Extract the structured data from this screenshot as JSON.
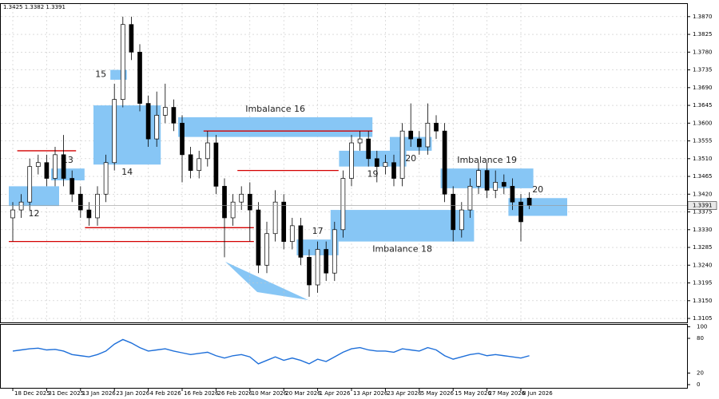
{
  "chart_data": [
    {
      "type": "candlestick",
      "ohlc_label": "1.3425 1.3382 1.3391",
      "last_price": 1.3391,
      "categories": [
        "18 Dec 2025",
        null,
        null,
        null,
        "31 Dec 2025",
        null,
        null,
        null,
        "13 Jan 2026",
        null,
        null,
        null,
        "23 Jan 2026",
        null,
        null,
        null,
        "4 Feb 2026",
        null,
        null,
        null,
        "16 Feb 2026",
        null,
        null,
        null,
        "26 Feb 2026",
        null,
        null,
        null,
        "10 Mar 2026",
        null,
        null,
        null,
        "20 Mar 2026",
        null,
        null,
        null,
        "1 Apr 2026",
        null,
        null,
        null,
        "13 Apr 2026",
        null,
        null,
        null,
        "23 Apr 2026",
        null,
        null,
        null,
        "5 May 2026",
        null,
        null,
        null,
        "15 May 2026",
        null,
        null,
        null,
        "27 May 2026",
        null,
        null,
        null,
        "8 Jun 2026",
        null
      ],
      "open": [
        1.336,
        1.338,
        1.34,
        1.349,
        1.35,
        1.346,
        1.352,
        1.346,
        1.342,
        1.338,
        1.336,
        1.342,
        1.35,
        1.366,
        1.385,
        1.378,
        1.365,
        1.356,
        1.362,
        1.364,
        1.36,
        1.352,
        1.348,
        1.351,
        1.355,
        1.344,
        1.336,
        1.34,
        1.342,
        1.338,
        1.324,
        1.332,
        1.34,
        1.33,
        1.334,
        1.326,
        1.319,
        1.328,
        1.322,
        1.333,
        1.346,
        1.355,
        1.356,
        1.351,
        1.349,
        1.35,
        1.346,
        1.358,
        1.356,
        1.354,
        1.36,
        1.358,
        1.342,
        1.333,
        1.338,
        1.344,
        1.348,
        1.343,
        1.345,
        1.344,
        1.34,
        1.341
      ],
      "high": [
        1.34,
        1.342,
        1.351,
        1.352,
        1.352,
        1.354,
        1.357,
        1.348,
        1.344,
        1.34,
        1.344,
        1.352,
        1.37,
        1.387,
        1.387,
        1.38,
        1.367,
        1.368,
        1.37,
        1.366,
        1.362,
        1.354,
        1.353,
        1.358,
        1.357,
        1.346,
        1.342,
        1.344,
        1.345,
        1.34,
        1.335,
        1.343,
        1.342,
        1.336,
        1.336,
        1.328,
        1.33,
        1.33,
        1.335,
        1.348,
        1.357,
        1.358,
        1.358,
        1.353,
        1.352,
        1.352,
        1.36,
        1.365,
        1.358,
        1.365,
        1.362,
        1.36,
        1.344,
        1.34,
        1.346,
        1.35,
        1.35,
        1.348,
        1.347,
        1.346,
        1.342,
        1.3425
      ],
      "low": [
        1.33,
        1.336,
        1.338,
        1.347,
        1.344,
        1.344,
        1.344,
        1.34,
        1.336,
        1.334,
        1.334,
        1.34,
        1.348,
        1.364,
        1.376,
        1.363,
        1.354,
        1.354,
        1.36,
        1.358,
        1.345,
        1.346,
        1.346,
        1.349,
        1.342,
        1.326,
        1.334,
        1.338,
        1.33,
        1.322,
        1.322,
        1.33,
        1.328,
        1.328,
        1.324,
        1.316,
        1.317,
        1.32,
        1.32,
        1.331,
        1.344,
        1.353,
        1.349,
        1.345,
        1.347,
        1.344,
        1.344,
        1.354,
        1.352,
        1.352,
        1.356,
        1.34,
        1.33,
        1.331,
        1.336,
        1.342,
        1.341,
        1.341,
        1.342,
        1.338,
        1.33,
        1.3382
      ],
      "close": [
        1.338,
        1.34,
        1.349,
        1.35,
        1.346,
        1.352,
        1.346,
        1.342,
        1.338,
        1.336,
        1.342,
        1.35,
        1.366,
        1.385,
        1.378,
        1.365,
        1.356,
        1.362,
        1.364,
        1.36,
        1.352,
        1.348,
        1.351,
        1.355,
        1.344,
        1.336,
        1.34,
        1.342,
        1.338,
        1.324,
        1.332,
        1.34,
        1.33,
        1.334,
        1.326,
        1.319,
        1.328,
        1.322,
        1.333,
        1.346,
        1.355,
        1.356,
        1.351,
        1.349,
        1.35,
        1.346,
        1.358,
        1.356,
        1.354,
        1.36,
        1.358,
        1.342,
        1.333,
        1.338,
        1.344,
        1.348,
        1.343,
        1.345,
        1.344,
        1.34,
        1.335,
        1.3391
      ],
      "zones": [
        {
          "label": "12",
          "low": 1.339,
          "high": 1.344,
          "start": 0,
          "end": 5
        },
        {
          "label": "13",
          "low": 1.3455,
          "high": 1.3485,
          "start": 5,
          "end": 8
        },
        {
          "label": "14",
          "low": 1.3495,
          "high": 1.3645,
          "start": 10,
          "end": 17
        },
        {
          "label": "15",
          "low": 1.371,
          "high": 1.3735,
          "start": 12,
          "end": 13
        },
        {
          "label": "Imbalance 16",
          "low": 1.3565,
          "high": 1.3615,
          "start": 20,
          "end": 42
        },
        {
          "label": "17",
          "low": 1.3265,
          "high": 1.3305,
          "start": 34,
          "end": 38
        },
        {
          "label": "Imbalance 18",
          "low": 1.33,
          "high": 1.338,
          "start": 38,
          "end": 54
        },
        {
          "label": "19",
          "low": 1.349,
          "high": 1.353,
          "start": 39,
          "end": 46
        },
        {
          "label": "20",
          "low": 1.353,
          "high": 1.3565,
          "start": 45,
          "end": 49
        },
        {
          "label": "Imbalance 19",
          "low": 1.3435,
          "high": 1.3485,
          "start": 51,
          "end": 61
        },
        {
          "label": "20",
          "low": 1.3365,
          "high": 1.341,
          "start": 59,
          "end": 65
        }
      ],
      "levels": [
        {
          "value": 1.353,
          "start": 1,
          "end": 7
        },
        {
          "value": 1.3335,
          "start": 9,
          "end": 28
        },
        {
          "value": 1.33,
          "start": 0,
          "end": 28
        },
        {
          "value": 1.358,
          "start": 23,
          "end": 42
        },
        {
          "value": 1.348,
          "start": 27,
          "end": 38
        }
      ],
      "ylim": [
        1.3097,
        1.3902
      ],
      "yticks": [
        {
          "value": 1.387,
          "label": "1.3870"
        },
        1.3825,
        {
          "value": 1.378,
          "label": "1.3780"
        },
        1.3735,
        {
          "value": 1.369,
          "label": "1.3690"
        },
        1.3645,
        {
          "value": 1.36,
          "label": "1.3600"
        },
        1.3555,
        {
          "value": 1.351,
          "label": "1.3510"
        },
        1.3465,
        {
          "value": 1.342,
          "label": "1.3420"
        },
        1.3375,
        {
          "value": 1.333,
          "label": "1.3330"
        },
        1.3285,
        {
          "value": 1.324,
          "label": "1.3240"
        },
        1.3195,
        {
          "value": 1.315,
          "label": "1.3150"
        },
        1.3105
      ],
      "grid": true
    },
    {
      "type": "line",
      "color": "#1e6fd9",
      "values": [
        58,
        60,
        62,
        63,
        60,
        61,
        58,
        52,
        50,
        48,
        52,
        58,
        70,
        78,
        72,
        64,
        58,
        60,
        62,
        58,
        55,
        52,
        54,
        56,
        50,
        46,
        50,
        52,
        48,
        36,
        42,
        48,
        42,
        46,
        42,
        36,
        44,
        40,
        48,
        56,
        62,
        64,
        60,
        58,
        58,
        56,
        62,
        60,
        58,
        64,
        60,
        50,
        44,
        48,
        52,
        54,
        50,
        52,
        50,
        48,
        46,
        50
      ],
      "ylim": [
        0,
        100
      ],
      "yticks": [
        0,
        20,
        80,
        100
      ]
    }
  ]
}
